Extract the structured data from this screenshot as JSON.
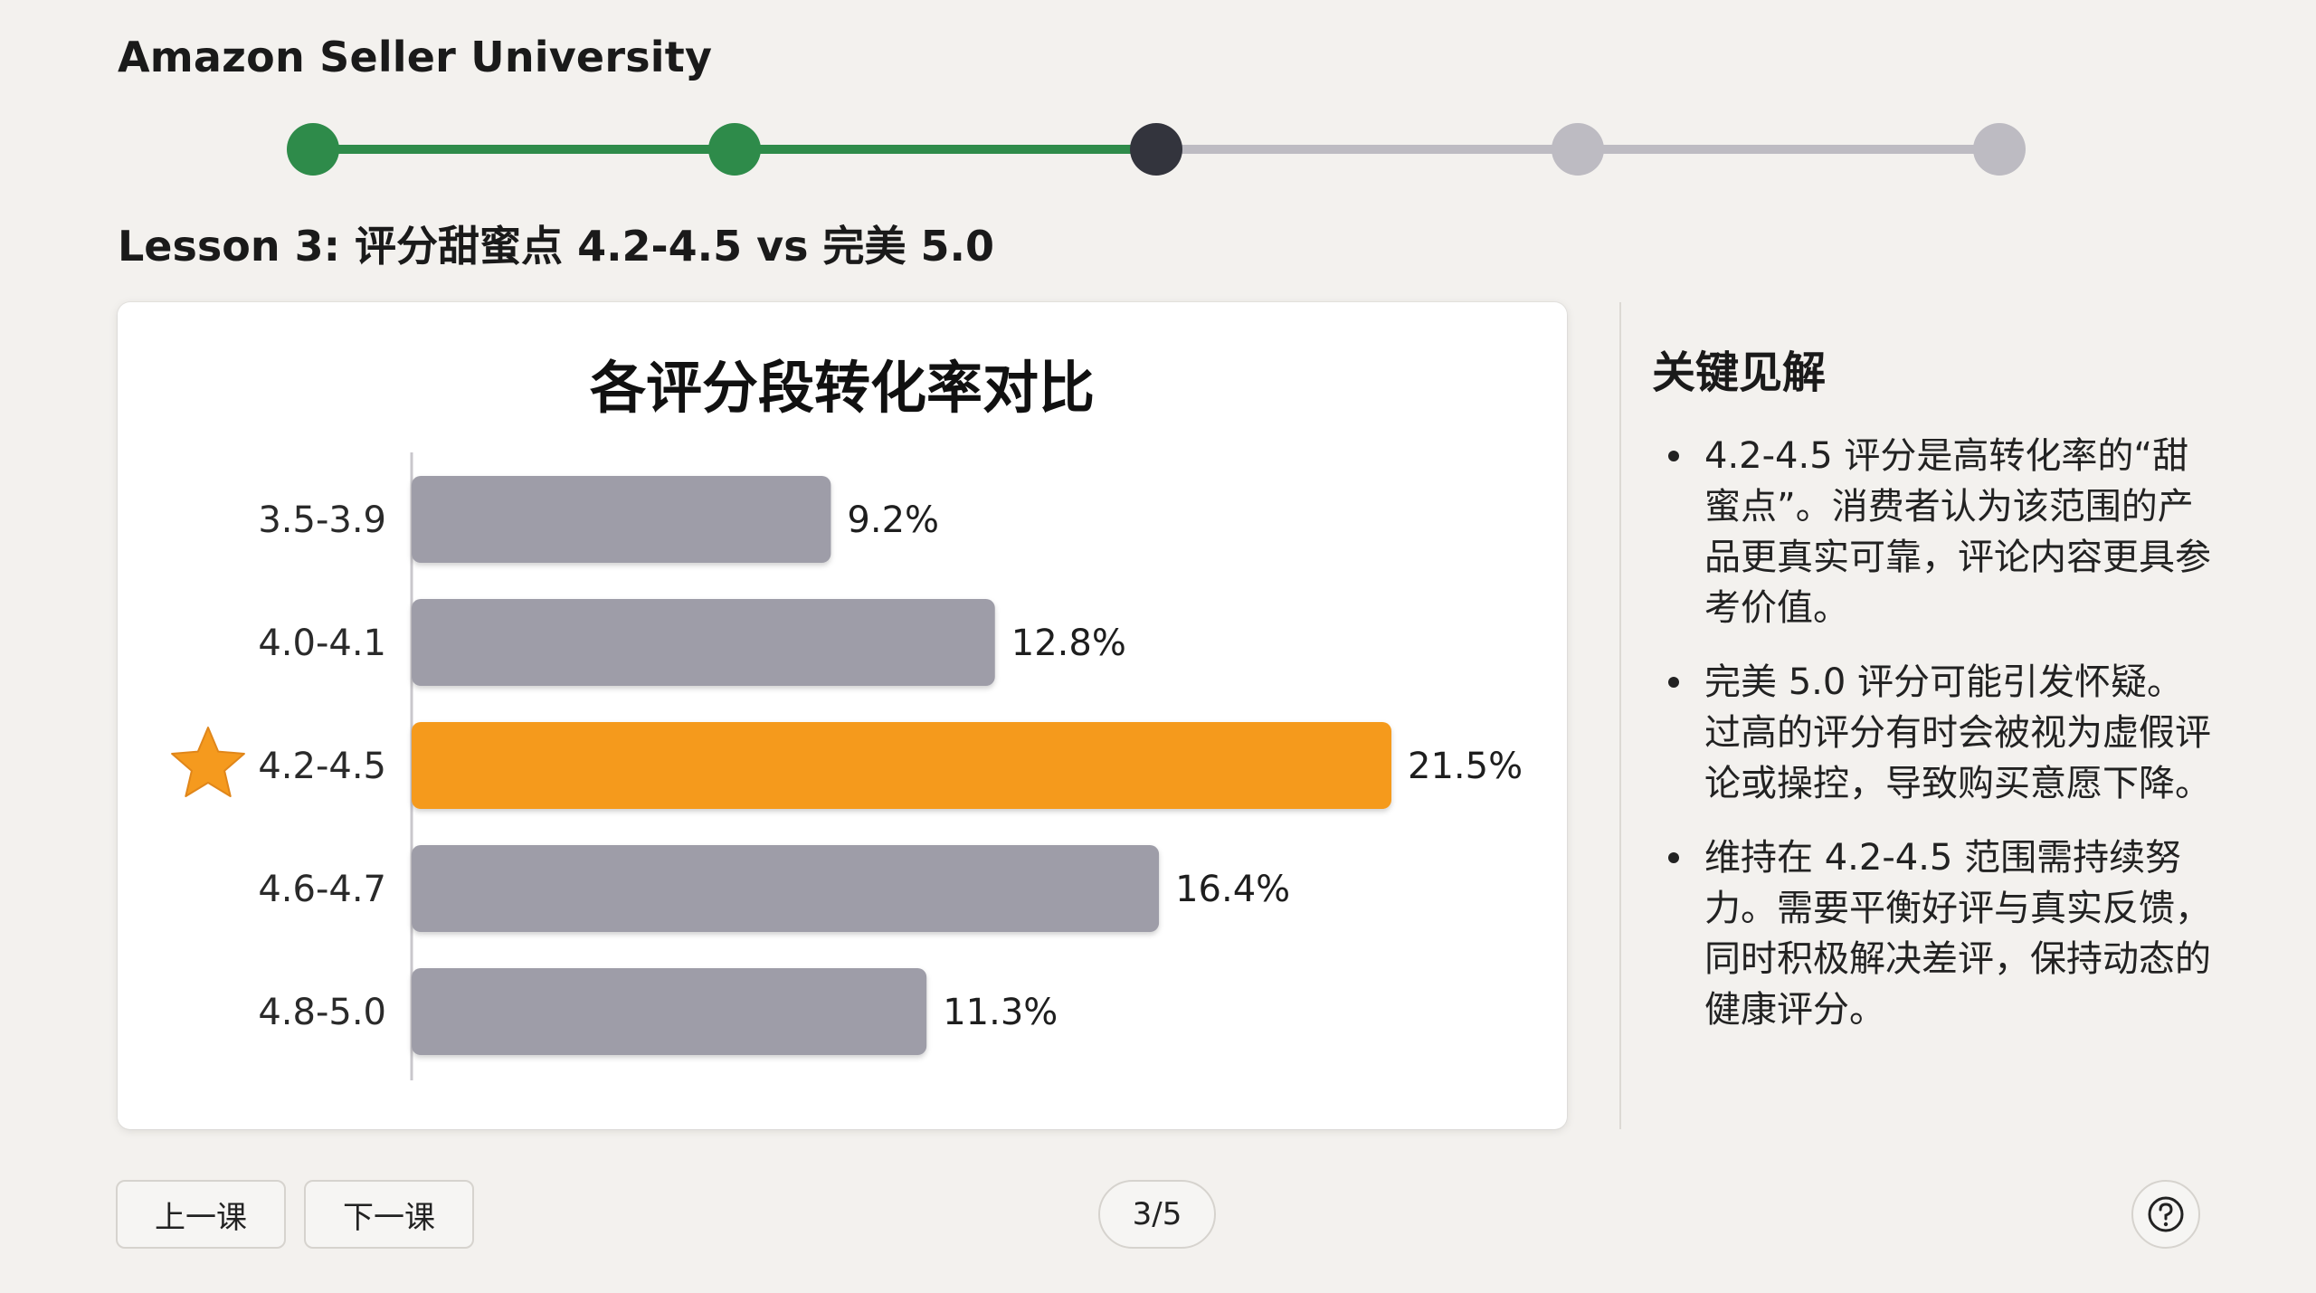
{
  "header": {
    "brand": "Amazon Seller University"
  },
  "progress": {
    "total": 5,
    "current": 3,
    "steps": [
      "done",
      "done",
      "current",
      "todo",
      "todo"
    ]
  },
  "lesson": {
    "title": "Lesson 3: 评分甜蜜点 4.2-4.5 vs 完美 5.0"
  },
  "chart": {
    "title": "各评分段转化率对比"
  },
  "chart_data": {
    "type": "bar",
    "orientation": "horizontal",
    "title": "各评分段转化率对比",
    "categories": [
      "3.5-3.9",
      "4.0-4.1",
      "4.2-4.5",
      "4.6-4.7",
      "4.8-5.0"
    ],
    "values": [
      9.2,
      12.8,
      21.5,
      16.4,
      11.3
    ],
    "value_labels": [
      "9.2%",
      "12.8%",
      "21.5%",
      "16.4%",
      "11.3%"
    ],
    "unit": "%",
    "highlight_index": 2,
    "highlight_marker": "star-icon",
    "xlim": [
      0,
      21.5
    ],
    "colors": {
      "default": "#9e9da8",
      "highlight": "#f59a1e",
      "star": "#f59a1e"
    },
    "grid": false,
    "legend": "none"
  },
  "insights": {
    "title": "关键见解",
    "items": [
      "4.2-4.5 评分是高转化率的“甜蜜点”。消费者认为该范围的产品更真实可靠，评论内容更具参考价值。",
      "完美 5.0 评分可能引发怀疑。过高的评分有时会被视为虚假评论或操控，导致购买意愿下降。",
      "维持在 4.2-4.5 范围需持续努力。需要平衡好评与真实反馈，同时积极解决差评，保持动态的健康评分。"
    ]
  },
  "nav": {
    "prev_label": "上一课",
    "next_label": "下一课",
    "page_indicator": "3/5",
    "help_icon": "question-circle-icon"
  },
  "colors": {
    "done": "#2e8b4a",
    "current": "#33343d",
    "todo": "#bdbbc2",
    "background": "#f3f1ee"
  }
}
